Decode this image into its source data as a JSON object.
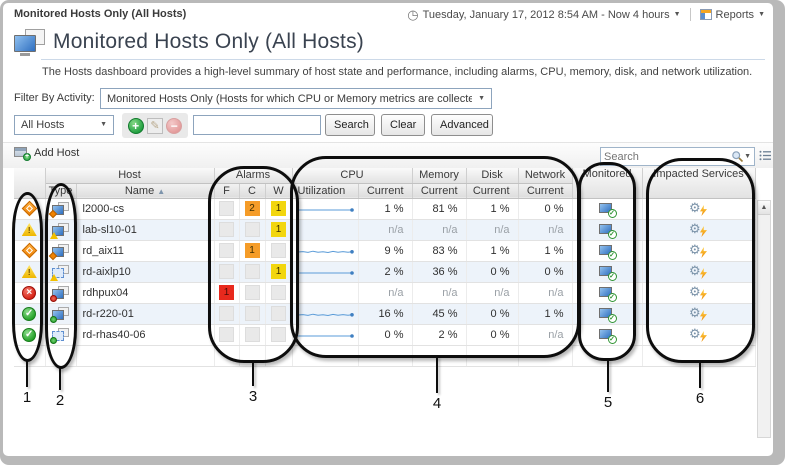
{
  "breadcrumb": "Monitored Hosts Only (All Hosts)",
  "topbar": {
    "time_range": "Tuesday, January 17, 2012 8:54 AM - Now 4 hours",
    "reports_label": "Reports"
  },
  "title": "Monitored Hosts Only (All Hosts)",
  "description": "The Hosts dashboard provides a high-level summary of host state and performance, including alarms, CPU, memory, disk, and network utilization.",
  "filter": {
    "label": "Filter By Activity:",
    "value": "Monitored Hosts Only (Hosts for which CPU or Memory metrics are collected)"
  },
  "toolbar": {
    "scope_value": "All Hosts",
    "search_value": "",
    "search_button": "Search",
    "clear_button": "Clear",
    "advanced_button": "Advanced"
  },
  "table_toolbar": {
    "add_host": "Add Host",
    "search_placeholder": "Search"
  },
  "table": {
    "group_headers": {
      "host": "Host",
      "alarms": "Alarms",
      "cpu": "CPU",
      "memory": "Memory",
      "disk": "Disk",
      "network": "Network",
      "monitored": "Monitored",
      "impacted": "Impacted Services"
    },
    "sub_headers": {
      "type": "Type",
      "name": "Name",
      "f": "F",
      "c": "C",
      "w": "W",
      "utilization": "Utilization",
      "current": "Current"
    },
    "rows": [
      {
        "name": "l2000-cs",
        "severity": "critical",
        "host_type": "physical",
        "alarms": {
          "f": "",
          "c": "2",
          "w": "1"
        },
        "sparkline": "flat",
        "cpu": "1 %",
        "memory": "81 %",
        "disk": "1 %",
        "network": "0 %",
        "monitored": true,
        "impacted": true
      },
      {
        "name": "lab-sl10-01",
        "severity": "warning",
        "host_type": "physical",
        "alarms": {
          "f": "",
          "c": "",
          "w": "1"
        },
        "sparkline": "none",
        "cpu": "n/a",
        "memory": "n/a",
        "disk": "n/a",
        "network": "n/a",
        "monitored": true,
        "impacted": true
      },
      {
        "name": "rd_aix11",
        "severity": "critical",
        "host_type": "physical",
        "alarms": {
          "f": "",
          "c": "1",
          "w": ""
        },
        "sparkline": "wavy",
        "cpu": "9 %",
        "memory": "83 %",
        "disk": "1 %",
        "network": "1 %",
        "monitored": true,
        "impacted": true
      },
      {
        "name": "rd-aixlp10",
        "severity": "warning",
        "host_type": "virtual",
        "alarms": {
          "f": "",
          "c": "",
          "w": "1"
        },
        "sparkline": "flat",
        "cpu": "2 %",
        "memory": "36 %",
        "disk": "0 %",
        "network": "0 %",
        "monitored": true,
        "impacted": true
      },
      {
        "name": "rdhpux04",
        "severity": "fatal",
        "host_type": "physical",
        "alarms": {
          "f": "1",
          "c": "",
          "w": ""
        },
        "sparkline": "none",
        "cpu": "n/a",
        "memory": "n/a",
        "disk": "n/a",
        "network": "n/a",
        "monitored": true,
        "impacted": true
      },
      {
        "name": "rd-r220-01",
        "severity": "normal",
        "host_type": "physical",
        "alarms": {
          "f": "",
          "c": "",
          "w": ""
        },
        "sparkline": "wavy",
        "cpu": "16 %",
        "memory": "45 %",
        "disk": "0 %",
        "network": "1 %",
        "monitored": true,
        "impacted": true
      },
      {
        "name": "rd-rhas40-06",
        "severity": "normal",
        "host_type": "virtual",
        "alarms": {
          "f": "",
          "c": "",
          "w": ""
        },
        "sparkline": "flat",
        "cpu": "0 %",
        "memory": "2 %",
        "disk": "0 %",
        "network": "n/a",
        "monitored": true,
        "impacted": true
      }
    ]
  },
  "annotations": [
    {
      "label": "1"
    },
    {
      "label": "2"
    },
    {
      "label": "3"
    },
    {
      "label": "4"
    },
    {
      "label": "5"
    },
    {
      "label": "6"
    }
  ],
  "icons": {
    "clock": "◷",
    "caret": "▼",
    "sort_asc": "▲",
    "scroll_up": "▲",
    "pencil": "✎",
    "plus": "+",
    "minus": "−",
    "check": "✓",
    "cross": "×",
    "bang": "!",
    "gear": "⚙"
  },
  "colors": {
    "fatal": "#e8291d",
    "critical": "#f59c28",
    "warning": "#f2d60e",
    "normal": "#2ba12f",
    "sparkline": "#5a9bd8",
    "zebra": "#edf3fa"
  }
}
